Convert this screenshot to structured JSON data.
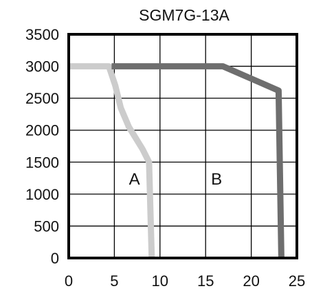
{
  "chart_data": {
    "type": "line",
    "title": "SGM7G-13A",
    "xlabel": "",
    "ylabel": "",
    "xlim": [
      0,
      25
    ],
    "ylim": [
      0,
      3500
    ],
    "xticks": [
      "0",
      "5",
      "10",
      "15",
      "20",
      "25"
    ],
    "yticks": [
      "0",
      "500",
      "1000",
      "1500",
      "2000",
      "2500",
      "3000",
      "3500"
    ],
    "grid": true,
    "series": [
      {
        "name": "A",
        "color": "#cccccc",
        "points": [
          [
            0,
            3000
          ],
          [
            4.4,
            3000
          ],
          [
            5.1,
            2700
          ],
          [
            5.7,
            2350
          ],
          [
            6.6,
            2050
          ],
          [
            8.1,
            1700
          ],
          [
            8.8,
            1500
          ],
          [
            9.1,
            0
          ]
        ]
      },
      {
        "name": "B",
        "color": "#6e6e6e",
        "points": [
          [
            4.7,
            3000
          ],
          [
            16.9,
            3000
          ],
          [
            23.0,
            2620
          ],
          [
            23.3,
            0
          ]
        ]
      }
    ],
    "region_labels": [
      {
        "text": "A",
        "x": 7.2,
        "y": 1150
      },
      {
        "text": "B",
        "x": 16.2,
        "y": 1150
      }
    ]
  }
}
